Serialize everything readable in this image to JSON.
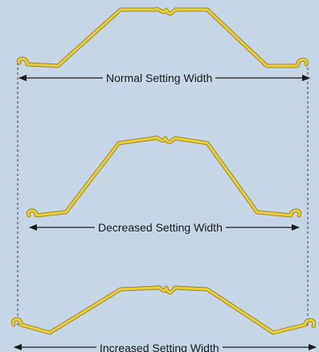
{
  "diagram": {
    "background_color": "#c6d6e6",
    "profile_color": "#e9cf3a",
    "profile_shadow_color": "#9b8a2a",
    "line_color": "#1a1a1a",
    "guide_line_color": "#3d3d3d",
    "profiles": [
      {
        "id": "normal",
        "label": "Normal Setting Width"
      },
      {
        "id": "decreased",
        "label": "Decreased Setting Width"
      },
      {
        "id": "increased",
        "label": "Increased Setting Width"
      }
    ]
  }
}
